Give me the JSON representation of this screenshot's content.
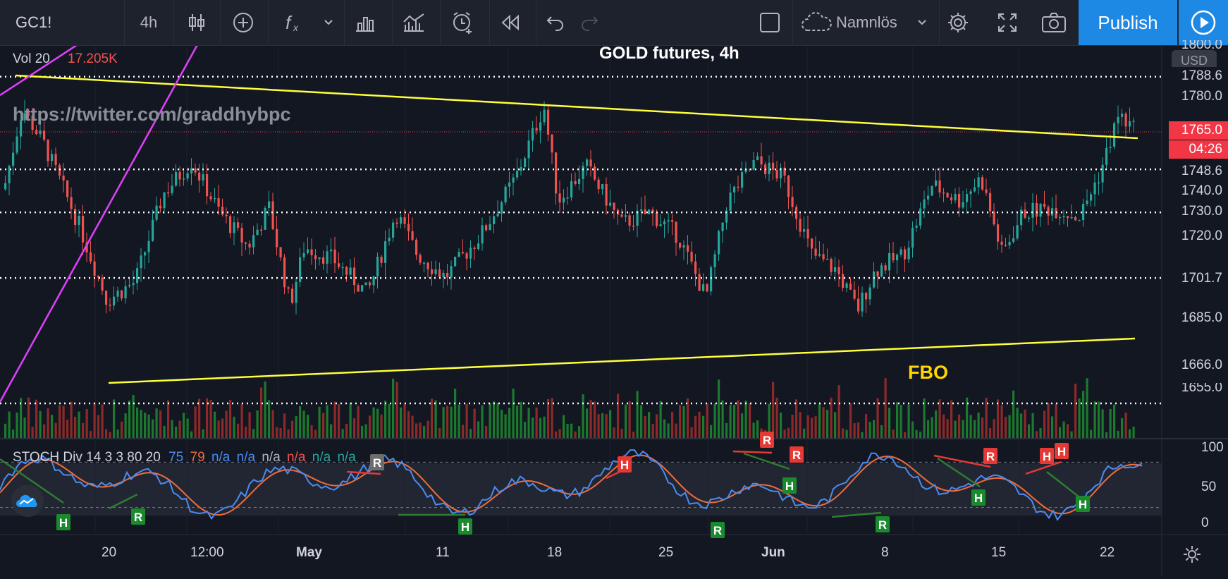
{
  "toolbar": {
    "symbol": "GC1!",
    "interval": "4h",
    "layout_name": "Namnlös",
    "publish_label": "Publish"
  },
  "chart_header": {
    "title": "GOLD futures, 4h",
    "volume_label": "Vol 20",
    "volume_value": "17.205K",
    "watermark": "https://twitter.com/graddhybpc",
    "fbo_label": "FBO"
  },
  "price_axis": {
    "currency": "USD",
    "ticks": [
      "1780.0",
      "1740.0",
      "1720.0",
      "1685.0",
      "1666.0",
      "1655.0"
    ],
    "level_labels": [
      "1788.6",
      "1748.6",
      "1730.0",
      "1701.7",
      "1666.0"
    ],
    "current_price": "1765.0",
    "countdown": "04:26",
    "top_partial": "1800.0"
  },
  "stoch": {
    "label": "STOCH Div 14 3 3 80 20",
    "k_value": "75",
    "d_value": "79",
    "na_values": [
      "n/a",
      "n/a",
      "n/a",
      "n/a",
      "n/a",
      "n/a"
    ],
    "axis_ticks": [
      "100",
      "50",
      "0"
    ],
    "markers": [
      {
        "type": "H",
        "color": "green"
      },
      {
        "type": "R",
        "color": "green"
      },
      {
        "type": "R",
        "color": "gray"
      },
      {
        "type": "H",
        "color": "green"
      },
      {
        "type": "H",
        "color": "red"
      },
      {
        "type": "R",
        "color": "green"
      },
      {
        "type": "R",
        "color": "red"
      },
      {
        "type": "R",
        "color": "red"
      },
      {
        "type": "H",
        "color": "green"
      },
      {
        "type": "R",
        "color": "green"
      },
      {
        "type": "H",
        "color": "green"
      },
      {
        "type": "R",
        "color": "red"
      },
      {
        "type": "H",
        "color": "red"
      },
      {
        "type": "H",
        "color": "red"
      },
      {
        "type": "H",
        "color": "green"
      }
    ]
  },
  "time_axis": {
    "labels": [
      "20",
      "12:00",
      "May",
      "11",
      "18",
      "25",
      "Jun",
      "8",
      "15",
      "22"
    ]
  },
  "colors": {
    "bull": "#26a69a",
    "bear": "#ef5350",
    "trendline": "#ffff3b",
    "channel": "#e040fb",
    "accent": "#1e88e5"
  }
}
